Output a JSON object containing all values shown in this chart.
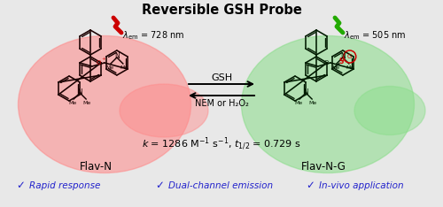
{
  "title": "Reversible GSH Probe",
  "title_fontsize": 10.5,
  "title_fontweight": "bold",
  "bg_color": "#e8e8e8",
  "left_label": "Flav-N",
  "right_label": "Flav-N-G",
  "left_em_lambda": "λ",
  "left_em_rest": "em = 728 nm",
  "right_em_lambda": "λ",
  "right_em_rest": "em = 505 nm",
  "arrow_top": "GSH",
  "arrow_bottom": "NEM or H₂O₂",
  "blue_color": "#2222cc",
  "left_bg_color": "#ff8888",
  "right_bg_color": "#88dd88",
  "mol_color_l": "#1a0000",
  "mol_color_r": "#001a00",
  "check_color": "#2222cc",
  "bullet1": "Rapid response",
  "bullet2": "Dual-channel emission",
  "bullet3": "In-vivo application"
}
